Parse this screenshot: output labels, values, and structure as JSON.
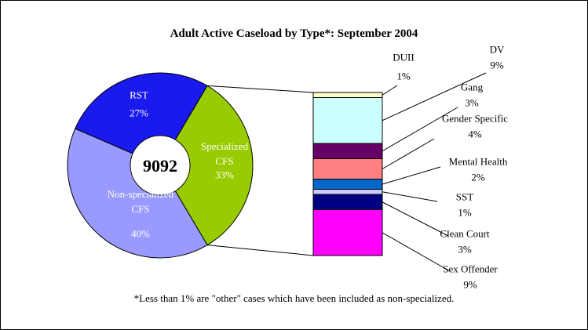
{
  "chart_data": {
    "type": "pie-of-bar",
    "title": "Adult Active Caseload by Type*: September 2004",
    "total": 9092,
    "categories": [
      "RST",
      "Specialized CFS",
      "Non-specialized CFS"
    ],
    "values": [
      27,
      33,
      40
    ],
    "value_labels": [
      "27%",
      "33%",
      "40%"
    ],
    "colors": [
      "#1a1aee",
      "#99cc00",
      "#9999ff"
    ],
    "breakdown": {
      "categories": [
        "DUII",
        "DV",
        "Gang",
        "Gender Specific",
        "Mental Health",
        "SST",
        "Clean Court",
        "Sex Offender"
      ],
      "values": [
        1,
        9,
        3,
        4,
        2,
        1,
        3,
        9
      ],
      "value_labels": [
        "1%",
        "9%",
        "3%",
        "4%",
        "2%",
        "1%",
        "3%",
        "9%"
      ],
      "colors": [
        "#ffffcc",
        "#ccffff",
        "#660066",
        "#ff8080",
        "#0066cc",
        "#ccccff",
        "#000080",
        "#ff00ff"
      ]
    },
    "footnote": "*Less than 1% are \"other\" cases which have been included as non-specialized."
  }
}
